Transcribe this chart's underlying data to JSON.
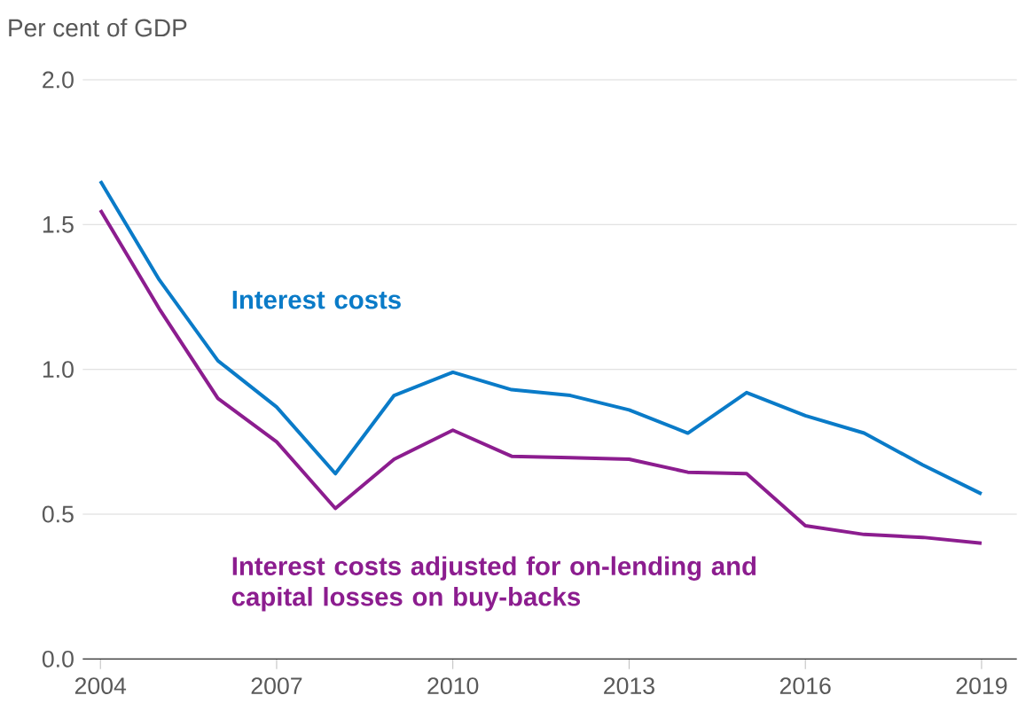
{
  "chart_data": {
    "type": "line",
    "ylabel": "Per cent of GDP",
    "x": [
      2004,
      2005,
      2006,
      2007,
      2008,
      2009,
      2010,
      2011,
      2012,
      2013,
      2014,
      2015,
      2016,
      2017,
      2018,
      2019
    ],
    "series": [
      {
        "name": "Interest costs",
        "color": "#0a7bc8",
        "values": [
          1.65,
          1.31,
          1.03,
          0.87,
          0.64,
          0.91,
          0.99,
          0.93,
          0.91,
          0.86,
          0.78,
          0.92,
          0.84,
          0.78,
          0.67,
          0.57
        ]
      },
      {
        "name": "Interest costs adjusted for on-lending and capital losses on buy-backs",
        "color": "#8c1d8f",
        "values": [
          1.55,
          1.21,
          0.9,
          0.75,
          0.52,
          0.69,
          0.79,
          0.7,
          0.695,
          0.69,
          0.645,
          0.64,
          0.46,
          0.43,
          0.42,
          0.4
        ]
      }
    ],
    "xlim": [
      2003.7,
      2019.6
    ],
    "xticks": [
      2004,
      2007,
      2010,
      2013,
      2016,
      2019
    ],
    "ylim": [
      0,
      2
    ],
    "yticks": [
      {
        "value": 0,
        "label": "0.0"
      },
      {
        "value": 0.5,
        "label": "0.5"
      },
      {
        "value": 1,
        "label": "1.0"
      },
      {
        "value": 1.5,
        "label": "1.5"
      },
      {
        "value": 2,
        "label": "2.0"
      }
    ],
    "grid": "y",
    "line_style": "solid"
  }
}
